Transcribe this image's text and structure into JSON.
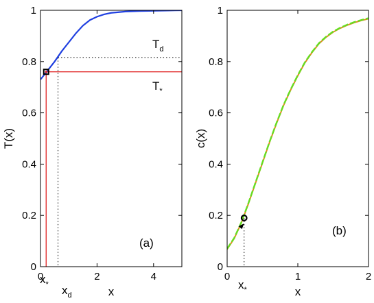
{
  "chart_data": [
    {
      "panel": "(a)",
      "type": "line",
      "xlabel": "x",
      "ylabel": "T(x)",
      "xlim": [
        0,
        5
      ],
      "ylim": [
        0,
        1
      ],
      "xticks": [
        0,
        2,
        4
      ],
      "yticks": [
        0,
        0.2,
        0.4,
        0.6,
        0.8,
        1
      ],
      "ytick_labels": [
        "0",
        "0.2",
        "0.4",
        "0.6",
        "0.8",
        "1"
      ],
      "grid": false,
      "series": [
        {
          "color": "#1f3fe0",
          "x": [
            0,
            0.25,
            0.5,
            0.75,
            1,
            1.25,
            1.5,
            1.75,
            2,
            2.25,
            2.5,
            3,
            3.5,
            4,
            4.5,
            5
          ],
          "y": [
            0.73,
            0.765,
            0.8,
            0.84,
            0.875,
            0.91,
            0.94,
            0.962,
            0.975,
            0.984,
            0.99,
            0.995,
            0.997,
            0.998,
            0.999,
            1.0
          ]
        }
      ],
      "reference_lines": [
        {
          "label": "T_d",
          "orientation": "horizontal",
          "value": 0.816,
          "style": "dotted",
          "color": "#000000"
        },
        {
          "label": "x_d",
          "orientation": "vertical",
          "value": 0.62,
          "style": "dotted",
          "color": "#000000"
        },
        {
          "label": "T_*",
          "orientation": "horizontal",
          "value": 0.76,
          "style": "solid",
          "color": "#e02020"
        },
        {
          "label": "x_*",
          "orientation": "vertical",
          "value": 0.2,
          "style": "solid",
          "color": "#e02020"
        }
      ],
      "marker": {
        "x": 0.2,
        "y": 0.76
      },
      "annotations": {
        "T_d": {
          "main": "T",
          "sub": "d"
        },
        "T_star": {
          "main": "T",
          "sub": "*"
        },
        "x_star": {
          "main": "x",
          "sub": "*"
        },
        "x_d": {
          "main": "x",
          "sub": "d"
        },
        "panel_label": "(a)"
      }
    },
    {
      "panel": "(b)",
      "type": "line",
      "xlabel": "x",
      "ylabel": "c(x)",
      "xlim": [
        0,
        2
      ],
      "ylim": [
        0,
        1
      ],
      "xticks": [
        0,
        1,
        2
      ],
      "yticks": [
        0,
        0.2,
        0.4,
        0.6,
        0.8,
        1
      ],
      "ytick_labels": [
        "0",
        "0.2",
        "0.4",
        "0.6",
        "0.8",
        "1"
      ],
      "grid": false,
      "series": [
        {
          "color": "#e08a20",
          "style": "solid",
          "x": [
            0,
            0.1,
            0.2,
            0.3,
            0.4,
            0.5,
            0.6,
            0.7,
            0.8,
            0.9,
            1.0,
            1.1,
            1.2,
            1.3,
            1.4,
            1.5,
            1.6,
            1.7,
            1.8,
            1.9,
            2.0
          ],
          "y": [
            0.068,
            0.11,
            0.17,
            0.245,
            0.325,
            0.405,
            0.485,
            0.56,
            0.63,
            0.69,
            0.745,
            0.795,
            0.835,
            0.87,
            0.895,
            0.915,
            0.93,
            0.942,
            0.952,
            0.96,
            0.967
          ]
        },
        {
          "color": "#66dd22",
          "style": "dashed",
          "x": [
            0,
            0.1,
            0.2,
            0.3,
            0.4,
            0.5,
            0.6,
            0.7,
            0.8,
            0.9,
            1.0,
            1.1,
            1.2,
            1.3,
            1.4,
            1.5,
            1.6,
            1.7,
            1.8,
            1.9,
            2.0
          ],
          "y": [
            0.07,
            0.112,
            0.172,
            0.247,
            0.327,
            0.407,
            0.487,
            0.562,
            0.632,
            0.692,
            0.747,
            0.797,
            0.837,
            0.872,
            0.897,
            0.917,
            0.932,
            0.944,
            0.954,
            0.962,
            0.969
          ]
        }
      ],
      "reference_lines": [
        {
          "label": "x_*",
          "orientation": "vertical",
          "value": 0.24,
          "style": "dotted",
          "color": "#000000"
        }
      ],
      "marker": {
        "x": 0.24,
        "y": 0.19
      },
      "arrow": {
        "x": 0.2,
        "y": 0.16
      },
      "annotations": {
        "x_star": {
          "main": "x",
          "sub": "*"
        },
        "panel_label": "(b)"
      }
    }
  ]
}
